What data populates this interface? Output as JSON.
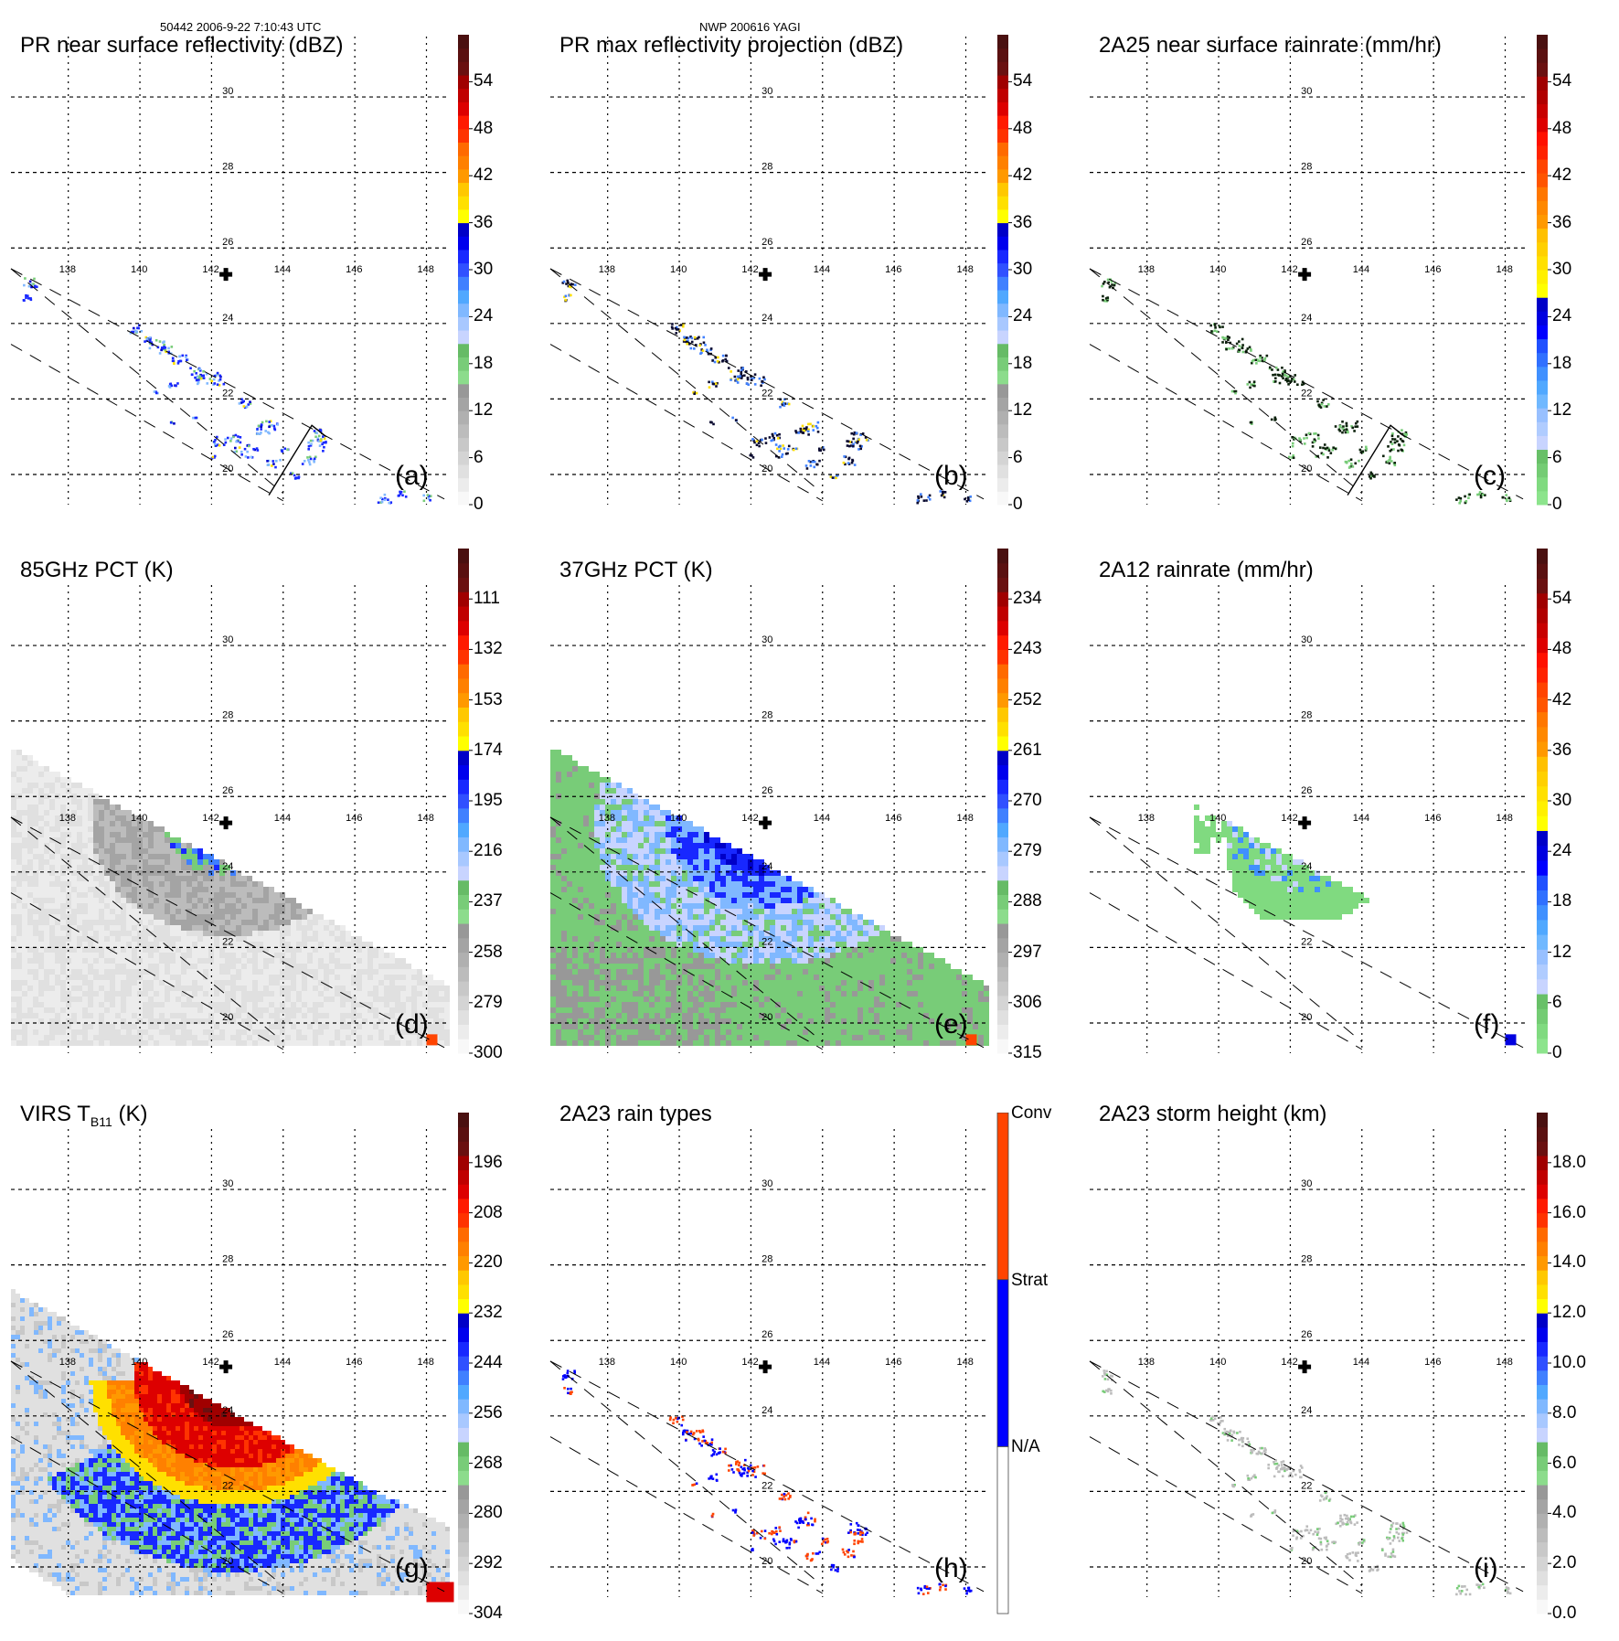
{
  "header": {
    "left": "50442 2006-9-22 7:10:43 UTC",
    "middle": "NWP 200616 YAGI"
  },
  "map": {
    "lon_ticks": [
      "138",
      "140",
      "142",
      "144",
      "146",
      "148"
    ],
    "lat_ticks": [
      "30",
      "28",
      "26",
      "24",
      "22",
      "20"
    ],
    "lon_range": [
      136.4,
      148.6
    ],
    "lat_range": [
      19.2,
      31.6
    ],
    "storm_center": {
      "lon": 142.4,
      "lat": 25.3,
      "marker": "cross-icon"
    }
  },
  "chart_data": [
    {
      "id": "a",
      "letter": "(a)",
      "type": "heatmap",
      "title": "PR near surface reflectivity (dBZ)",
      "field": "pr-sparse",
      "colorbar": {
        "ticks": [
          "54",
          "48",
          "42",
          "36",
          "30",
          "24",
          "18",
          "12",
          "6",
          "0"
        ],
        "range": [
          0,
          60
        ],
        "bands": [
          "#f8f8f8",
          "#ececec",
          "#e0e0e0",
          "#d4d4d4",
          "#c8c8c8",
          "#bcbcbc",
          "#b0b0b0",
          "#a4a4a4",
          "#989898",
          "#8cdc8c",
          "#78cc78",
          "#66bb66",
          "#c8d4ff",
          "#a8c8ff",
          "#80b8ff",
          "#50a8ff",
          "#4080ff",
          "#3050ff",
          "#1828ff",
          "#0000ee",
          "#0000c8",
          "#ffff00",
          "#ffe000",
          "#ffc800",
          "#ff9900",
          "#ff8000",
          "#ff6a00",
          "#ff3300",
          "#ff1a00",
          "#dd0000",
          "#c00000",
          "#a00000",
          "#6a1010",
          "#5a1010",
          "#4a1010"
        ]
      },
      "swath_edge_box": true
    },
    {
      "id": "b",
      "letter": "(b)",
      "type": "heatmap",
      "title": "PR max reflectivity projection (dBZ)",
      "field": "pr-contoured",
      "colorbar": {
        "ticks": [
          "54",
          "48",
          "42",
          "36",
          "30",
          "24",
          "18",
          "12",
          "6",
          "0"
        ],
        "range": [
          0,
          60
        ],
        "bands": [
          "#f8f8f8",
          "#ececec",
          "#e0e0e0",
          "#d4d4d4",
          "#c8c8c8",
          "#bcbcbc",
          "#b0b0b0",
          "#a4a4a4",
          "#989898",
          "#8cdc8c",
          "#78cc78",
          "#66bb66",
          "#c8d4ff",
          "#a8c8ff",
          "#80b8ff",
          "#50a8ff",
          "#4080ff",
          "#3050ff",
          "#1828ff",
          "#0000ee",
          "#0000c8",
          "#ffff00",
          "#ffe000",
          "#ffc800",
          "#ff9900",
          "#ff8000",
          "#ff6a00",
          "#ff3300",
          "#ff1a00",
          "#dd0000",
          "#c00000",
          "#a00000",
          "#6a1010",
          "#5a1010",
          "#4a1010"
        ]
      },
      "swath_edge_box": false
    },
    {
      "id": "c",
      "letter": "(c)",
      "type": "heatmap",
      "title": "2A25 near surface rainrate (mm/hr)",
      "field": "pr-green",
      "colorbar": {
        "ticks": [
          "54",
          "48",
          "42",
          "36",
          "30",
          "24",
          "18",
          "12",
          "6",
          "0"
        ],
        "range": [
          0,
          60
        ],
        "bands": [
          "#8ce48c",
          "#80da80",
          "#74cc74",
          "#68c068",
          "#c8d4ff",
          "#b0ccff",
          "#98c0ff",
          "#70b8ff",
          "#50a8ff",
          "#4090ff",
          "#3070ff",
          "#2050ff",
          "#0000ff",
          "#0000e0",
          "#0000c8",
          "#ffff00",
          "#fff000",
          "#ffe000",
          "#ffd000",
          "#ffc000",
          "#ff9900",
          "#ff8800",
          "#ff7700",
          "#ff5500",
          "#ff4400",
          "#ff2200",
          "#ff1100",
          "#dd0000",
          "#c80000",
          "#b00000",
          "#a00000",
          "#6a1010",
          "#5a1010",
          "#4a1010"
        ]
      },
      "swath_edge_box": true
    },
    {
      "id": "d",
      "letter": "(d)",
      "type": "heatmap",
      "title": "85GHz PCT (K)",
      "field": "pct85",
      "colorbar": {
        "ticks": [
          "111",
          "132",
          "153",
          "174",
          "195",
          "216",
          "237",
          "258",
          "279",
          "300"
        ],
        "range": [
          300,
          90
        ],
        "bands": [
          "#f8f8f8",
          "#ececec",
          "#e0e0e0",
          "#d4d4d4",
          "#c8c8c8",
          "#bcbcbc",
          "#b0b0b0",
          "#a4a4a4",
          "#989898",
          "#8cdc8c",
          "#78cc78",
          "#66bb66",
          "#c8d4ff",
          "#a8c8ff",
          "#80b8ff",
          "#50a8ff",
          "#4080ff",
          "#3050ff",
          "#1828ff",
          "#0000ee",
          "#0000c8",
          "#ffff00",
          "#ffe000",
          "#ffc800",
          "#ff9900",
          "#ff8000",
          "#ff6a00",
          "#ff3300",
          "#ff1a00",
          "#dd0000",
          "#c00000",
          "#a00000",
          "#6a1010",
          "#5a1010",
          "#4a1010"
        ]
      },
      "swath_edge_box": false
    },
    {
      "id": "e",
      "letter": "(e)",
      "type": "heatmap",
      "title": "37GHz PCT (K)",
      "field": "pct37",
      "colorbar": {
        "ticks": [
          "234",
          "243",
          "252",
          "261",
          "270",
          "279",
          "288",
          "297",
          "306",
          "315"
        ],
        "range": [
          315,
          225
        ],
        "bands": [
          "#f8f8f8",
          "#ececec",
          "#e0e0e0",
          "#d4d4d4",
          "#c8c8c8",
          "#bcbcbc",
          "#b0b0b0",
          "#a4a4a4",
          "#989898",
          "#8cdc8c",
          "#78cc78",
          "#66bb66",
          "#c8d4ff",
          "#a8c8ff",
          "#80b8ff",
          "#50a8ff",
          "#4080ff",
          "#3050ff",
          "#1828ff",
          "#0000ee",
          "#0000c8",
          "#ffff00",
          "#ffe000",
          "#ffc800",
          "#ff9900",
          "#ff8000",
          "#ff6a00",
          "#ff3300",
          "#ff1a00",
          "#dd0000",
          "#c00000",
          "#a00000",
          "#6a1010",
          "#5a1010",
          "#4a1010"
        ]
      },
      "swath_edge_box": false
    },
    {
      "id": "f",
      "letter": "(f)",
      "type": "heatmap",
      "title": "2A12 rainrate (mm/hr)",
      "field": "tmi-rain",
      "colorbar": {
        "ticks": [
          "54",
          "48",
          "42",
          "36",
          "30",
          "24",
          "18",
          "12",
          "6",
          "0"
        ],
        "range": [
          0,
          60
        ],
        "bands": [
          "#8ce48c",
          "#80da80",
          "#74cc74",
          "#68c068",
          "#c8d4ff",
          "#b0ccff",
          "#98c0ff",
          "#70b8ff",
          "#50a8ff",
          "#4090ff",
          "#3070ff",
          "#2050ff",
          "#0000ff",
          "#0000e0",
          "#0000c8",
          "#ffff00",
          "#fff000",
          "#ffe000",
          "#ffd000",
          "#ffc000",
          "#ff9900",
          "#ff8800",
          "#ff7700",
          "#ff5500",
          "#ff4400",
          "#ff2200",
          "#ff1100",
          "#dd0000",
          "#c80000",
          "#b00000",
          "#a00000",
          "#6a1010",
          "#5a1010",
          "#4a1010"
        ]
      },
      "swath_edge_box": false
    },
    {
      "id": "g",
      "letter": "(g)",
      "type": "heatmap",
      "title_main": "VIRS T",
      "title_sub": "B11",
      "title_unit": " (K)",
      "field": "virs",
      "colorbar": {
        "ticks": [
          "196",
          "208",
          "220",
          "232",
          "244",
          "256",
          "268",
          "280",
          "292",
          "304"
        ],
        "range": [
          304,
          184
        ],
        "bands": [
          "#f8f8f8",
          "#ececec",
          "#e0e0e0",
          "#d4d4d4",
          "#c8c8c8",
          "#bcbcbc",
          "#b0b0b0",
          "#a4a4a4",
          "#989898",
          "#8cdc8c",
          "#78cc78",
          "#66bb66",
          "#c8d4ff",
          "#a8c8ff",
          "#80b8ff",
          "#50a8ff",
          "#4080ff",
          "#3050ff",
          "#1828ff",
          "#0000ee",
          "#0000c8",
          "#ffff00",
          "#ffe000",
          "#ffc800",
          "#ff9900",
          "#ff8000",
          "#ff6a00",
          "#ff3300",
          "#ff1a00",
          "#dd0000",
          "#c00000",
          "#a00000",
          "#6a1010",
          "#5a1010",
          "#4a1010"
        ]
      },
      "swath_edge_box": false
    },
    {
      "id": "h",
      "letter": "(h)",
      "type": "heatmap",
      "title": "2A23 rain types",
      "field": "raintype",
      "colorbar": {
        "categorical": true,
        "ticks": [
          "Conv",
          "Strat",
          "N/A"
        ],
        "categories": [
          {
            "label": "N/A",
            "color": "#ffffff"
          },
          {
            "label": "Strat",
            "color": "#0000ff"
          },
          {
            "label": "Conv",
            "color": "#ff4400"
          }
        ]
      },
      "swath_edge_box": false
    },
    {
      "id": "i",
      "letter": "(i)",
      "type": "heatmap",
      "title": "2A23 storm height (km)",
      "field": "stormheight",
      "colorbar": {
        "ticks": [
          "18.0",
          "16.0",
          "14.0",
          "12.0",
          "10.0",
          "8.0",
          "6.0",
          "4.0",
          "2.0",
          "0.0"
        ],
        "range": [
          0,
          20
        ],
        "bands": [
          "#f8f8f8",
          "#ececec",
          "#e0e0e0",
          "#d4d4d4",
          "#c8c8c8",
          "#bcbcbc",
          "#b0b0b0",
          "#a4a4a4",
          "#989898",
          "#8cdc8c",
          "#78cc78",
          "#66bb66",
          "#c8d4ff",
          "#a8c8ff",
          "#80b8ff",
          "#50a8ff",
          "#4080ff",
          "#3050ff",
          "#1828ff",
          "#0000ee",
          "#0000c8",
          "#ffff00",
          "#ffe000",
          "#ffc800",
          "#ff9900",
          "#ff8000",
          "#ff6a00",
          "#ff3300",
          "#ff1a00",
          "#dd0000",
          "#c00000",
          "#a00000",
          "#6a1010",
          "#5a1010",
          "#4a1010"
        ]
      },
      "swath_edge_box": false
    }
  ]
}
